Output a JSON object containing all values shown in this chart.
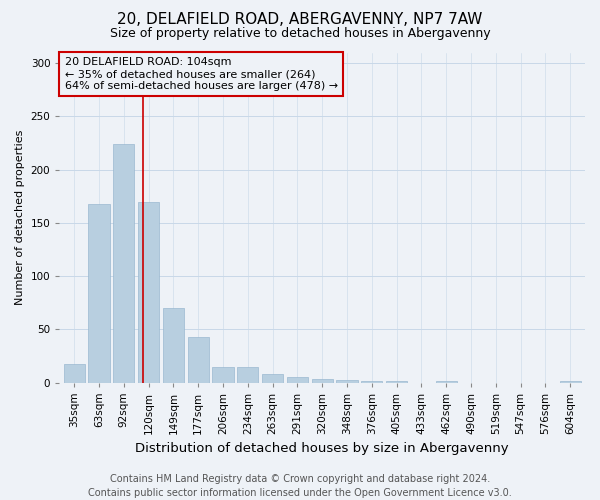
{
  "title": "20, DELAFIELD ROAD, ABERGAVENNY, NP7 7AW",
  "subtitle": "Size of property relative to detached houses in Abergavenny",
  "xlabel": "Distribution of detached houses by size in Abergavenny",
  "ylabel": "Number of detached properties",
  "footer_line1": "Contains HM Land Registry data © Crown copyright and database right 2024.",
  "footer_line2": "Contains public sector information licensed under the Open Government Licence v3.0.",
  "categories": [
    "35sqm",
    "63sqm",
    "92sqm",
    "120sqm",
    "149sqm",
    "177sqm",
    "206sqm",
    "234sqm",
    "263sqm",
    "291sqm",
    "320sqm",
    "348sqm",
    "376sqm",
    "405sqm",
    "433sqm",
    "462sqm",
    "490sqm",
    "519sqm",
    "547sqm",
    "576sqm",
    "604sqm"
  ],
  "values": [
    17,
    168,
    224,
    170,
    70,
    43,
    15,
    15,
    8,
    5,
    3,
    2,
    1,
    1,
    0,
    1,
    0,
    0,
    0,
    0,
    1
  ],
  "bar_color": "#b8cfe0",
  "bar_edge_color": "#9ab8d0",
  "background_color": "#eef2f7",
  "ylim": [
    0,
    310
  ],
  "yticks": [
    0,
    50,
    100,
    150,
    200,
    250,
    300
  ],
  "annotation_line1": "20 DELAFIELD ROAD: 104sqm",
  "annotation_line2": "← 35% of detached houses are smaller (264)",
  "annotation_line3": "64% of semi-detached houses are larger (478) →",
  "vline_x_index": 2.78,
  "vline_color": "#cc0000",
  "annotation_box_color": "#cc0000",
  "grid_color": "#c8d8e8",
  "title_fontsize": 11,
  "subtitle_fontsize": 9,
  "xlabel_fontsize": 9.5,
  "ylabel_fontsize": 8,
  "tick_fontsize": 7.5,
  "annotation_fontsize": 8,
  "footer_fontsize": 7
}
